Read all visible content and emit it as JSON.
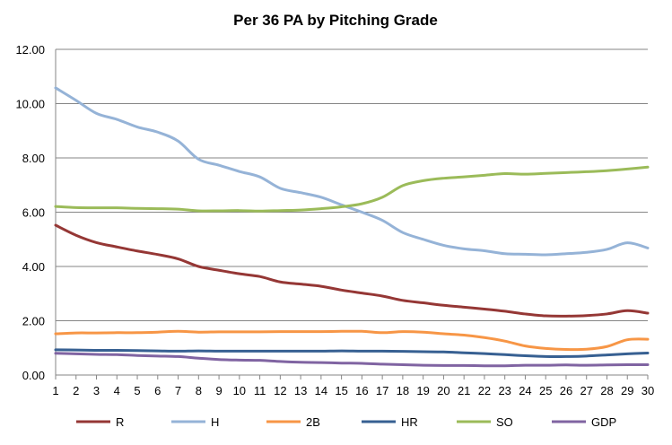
{
  "chart_data": {
    "type": "line",
    "title": "Per 36 PA by Pitching Grade",
    "xlabel": "",
    "ylabel": "",
    "x": [
      1,
      2,
      3,
      4,
      5,
      6,
      7,
      8,
      9,
      10,
      11,
      12,
      13,
      14,
      15,
      16,
      17,
      18,
      19,
      20,
      21,
      22,
      23,
      24,
      25,
      26,
      27,
      28,
      29,
      30
    ],
    "ylim": [
      0,
      12
    ],
    "yticks": [
      "0.00",
      "2.00",
      "4.00",
      "6.00",
      "8.00",
      "10.00",
      "12.00"
    ],
    "grid": "horizontal",
    "legend": "bottom",
    "series": [
      {
        "name": "R",
        "color": "#953735",
        "values": [
          5.52,
          5.15,
          4.88,
          4.72,
          4.57,
          4.44,
          4.28,
          4.0,
          3.86,
          3.73,
          3.63,
          3.43,
          3.35,
          3.27,
          3.13,
          3.02,
          2.91,
          2.75,
          2.66,
          2.57,
          2.5,
          2.43,
          2.35,
          2.25,
          2.18,
          2.17,
          2.19,
          2.25,
          2.37,
          2.28
        ]
      },
      {
        "name": "H",
        "color": "#95B3D7",
        "values": [
          10.58,
          10.12,
          9.64,
          9.42,
          9.14,
          8.95,
          8.62,
          7.95,
          7.73,
          7.5,
          7.3,
          6.88,
          6.72,
          6.55,
          6.27,
          6.0,
          5.7,
          5.25,
          5.0,
          4.78,
          4.65,
          4.58,
          4.47,
          4.45,
          4.43,
          4.47,
          4.52,
          4.63,
          4.87,
          4.68
        ]
      },
      {
        "name": "2B",
        "color": "#F79646",
        "values": [
          1.52,
          1.55,
          1.55,
          1.56,
          1.56,
          1.58,
          1.61,
          1.58,
          1.59,
          1.59,
          1.59,
          1.6,
          1.6,
          1.6,
          1.61,
          1.61,
          1.56,
          1.6,
          1.58,
          1.52,
          1.47,
          1.38,
          1.25,
          1.07,
          0.98,
          0.94,
          0.95,
          1.05,
          1.3,
          1.32
        ]
      },
      {
        "name": "HR",
        "color": "#376092",
        "values": [
          0.93,
          0.92,
          0.91,
          0.91,
          0.9,
          0.89,
          0.88,
          0.89,
          0.88,
          0.88,
          0.88,
          0.88,
          0.88,
          0.88,
          0.89,
          0.88,
          0.88,
          0.87,
          0.86,
          0.85,
          0.82,
          0.79,
          0.75,
          0.71,
          0.68,
          0.68,
          0.7,
          0.74,
          0.78,
          0.81
        ]
      },
      {
        "name": "SO",
        "color": "#9BBB59",
        "values": [
          6.21,
          6.17,
          6.16,
          6.16,
          6.14,
          6.13,
          6.11,
          6.05,
          6.05,
          6.06,
          6.04,
          6.06,
          6.08,
          6.13,
          6.2,
          6.31,
          6.55,
          6.98,
          7.16,
          7.25,
          7.3,
          7.36,
          7.42,
          7.4,
          7.43,
          7.46,
          7.49,
          7.53,
          7.59,
          7.66
        ]
      },
      {
        "name": "GDP",
        "color": "#8064A2",
        "values": [
          0.8,
          0.78,
          0.76,
          0.75,
          0.72,
          0.7,
          0.68,
          0.62,
          0.57,
          0.55,
          0.54,
          0.5,
          0.47,
          0.46,
          0.44,
          0.43,
          0.4,
          0.38,
          0.36,
          0.35,
          0.35,
          0.34,
          0.34,
          0.36,
          0.36,
          0.37,
          0.36,
          0.37,
          0.38,
          0.38
        ]
      }
    ]
  }
}
